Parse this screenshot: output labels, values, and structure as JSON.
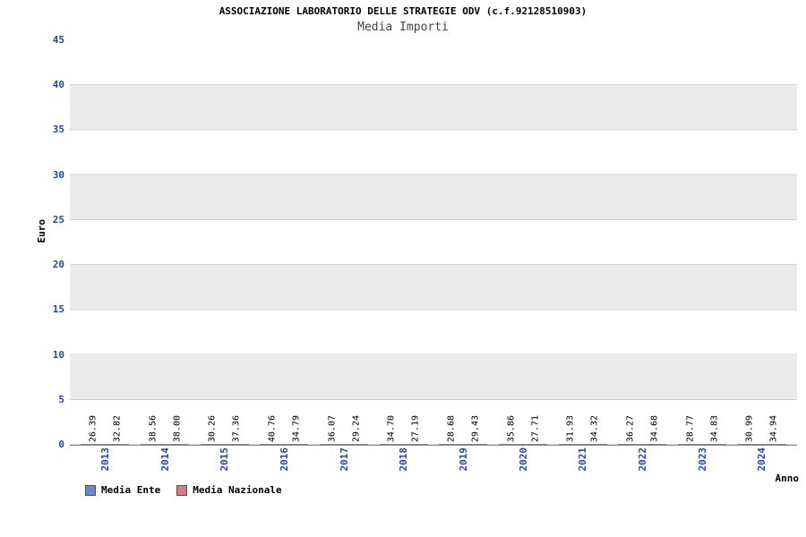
{
  "title": "ASSOCIAZIONE LABORATORIO DELLE STRATEGIE ODV (c.f.92128510903)",
  "subtitle": "Media Importi",
  "ylabel": "Euro",
  "xlabel": "Anno",
  "legend": [
    {
      "label": "Media Ente",
      "color": "#6688cc"
    },
    {
      "label": "Media Nazionale",
      "color": "#dd7788"
    }
  ],
  "colors": {
    "bar_ente": "#22cc22",
    "bar_nazionale": "#ee4444",
    "axis_text": "#2244bb",
    "band_gray": "#ebebeb"
  },
  "chart_data": {
    "type": "bar",
    "categories": [
      "2013",
      "2014",
      "2015",
      "2016",
      "2017",
      "2018",
      "2019",
      "2020",
      "2021",
      "2022",
      "2023",
      "2024"
    ],
    "series": [
      {
        "name": "Media Ente",
        "values": [
          26.39,
          38.56,
          30.26,
          40.76,
          36.07,
          34.7,
          28.68,
          35.86,
          31.93,
          36.27,
          28.77,
          30.99
        ]
      },
      {
        "name": "Media Nazionale",
        "values": [
          32.82,
          38.0,
          37.36,
          34.79,
          29.24,
          27.19,
          29.43,
          27.71,
          34.32,
          34.68,
          34.83,
          34.94
        ]
      }
    ],
    "title": "Media Importi",
    "xlabel": "Anno",
    "ylabel": "Euro",
    "ylim": [
      0,
      45
    ],
    "yticks": [
      0,
      5,
      10,
      15,
      20,
      25,
      30,
      35,
      40,
      45
    ],
    "grid": "horizontal-bands",
    "legend_position": "bottom-left",
    "value_labels": "rotated-90-above-bars"
  }
}
